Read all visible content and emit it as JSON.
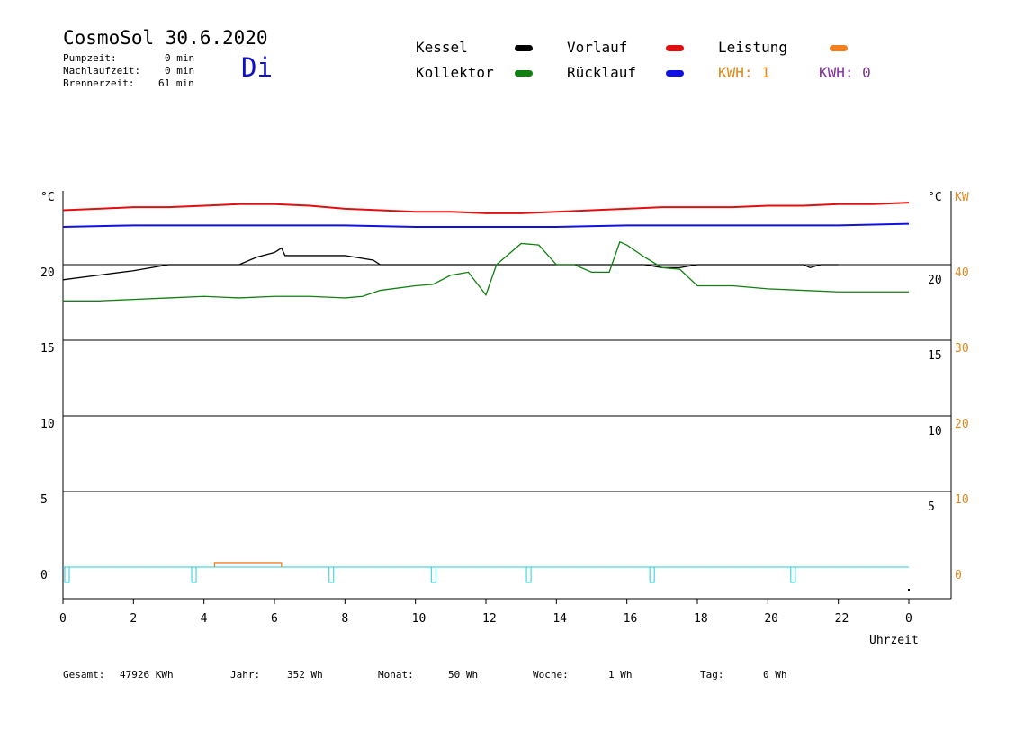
{
  "header": {
    "title": "CosmoSol 30.6.2020",
    "day": "Di",
    "stats": [
      {
        "label": "Pumpzeit:",
        "value": "0 min"
      },
      {
        "label": "Nachlaufzeit:",
        "value": "0 min"
      },
      {
        "label": "Brennerzeit:",
        "value": "61 min"
      }
    ]
  },
  "legend": [
    {
      "label": "Kessel",
      "color": "#000000"
    },
    {
      "label": "Vorlauf",
      "color": "#e01010"
    },
    {
      "label": "Leistung",
      "color": "#f08020"
    },
    {
      "label": "Kollektor",
      "color": "#108010"
    },
    {
      "label": "Rücklauf",
      "color": "#1010e0"
    }
  ],
  "kwh": [
    {
      "label": "KWH: 1",
      "color": "#e08a20"
    },
    {
      "label": "KWH: 0",
      "color": "#8030a0"
    }
  ],
  "footer": {
    "gesamt_label": "Gesamt:",
    "gesamt_value": "47926 KWh",
    "jahr_label": "Jahr:",
    "jahr_value": "352 Wh",
    "monat_label": "Monat:",
    "monat_value": "50 Wh",
    "woche_label": "Woche:",
    "woche_value": "1 Wh",
    "tag_label": "Tag:",
    "tag_value": "0 Wh"
  },
  "chart_data": {
    "type": "line",
    "xlabel": "Uhrzeit",
    "ylabel_left": "°C",
    "ylabel_right_inner": "°C",
    "ylabel_right": "KW",
    "x_ticks": [
      "0",
      "2",
      "4",
      "6",
      "8",
      "10",
      "12",
      "14",
      "16",
      "18",
      "20",
      "22",
      "0"
    ],
    "y_ticks_left": [
      "20",
      "15",
      "10",
      "5",
      "0"
    ],
    "y_ticks_right_inner": [
      "20",
      "15",
      "10",
      "5"
    ],
    "y_ticks_right": [
      "40",
      "30",
      "20",
      "10",
      "0"
    ],
    "xlim": [
      0,
      24
    ],
    "ylim": [
      0,
      25
    ],
    "grid": true,
    "series": [
      {
        "name": "Vorlauf",
        "color": "#e01010",
        "x": [
          0,
          1,
          2,
          3,
          4,
          5,
          6,
          7,
          8,
          9,
          10,
          11,
          12,
          13,
          14,
          15,
          16,
          17,
          18,
          19,
          20,
          21,
          22,
          23,
          24
        ],
        "y": [
          23.6,
          23.7,
          23.8,
          23.8,
          23.9,
          24.0,
          24.0,
          23.9,
          23.7,
          23.6,
          23.5,
          23.5,
          23.4,
          23.4,
          23.5,
          23.6,
          23.7,
          23.8,
          23.8,
          23.8,
          23.9,
          23.9,
          24.0,
          24.0,
          24.1
        ]
      },
      {
        "name": "Rücklauf",
        "color": "#1010e0",
        "x": [
          0,
          2,
          4,
          6,
          8,
          10,
          12,
          14,
          16,
          18,
          20,
          22,
          24
        ],
        "y": [
          22.5,
          22.6,
          22.6,
          22.6,
          22.6,
          22.5,
          22.5,
          22.5,
          22.6,
          22.6,
          22.6,
          22.6,
          22.7
        ]
      },
      {
        "name": "Kessel",
        "color": "#000000",
        "x": [
          0,
          1,
          2,
          3,
          3.2,
          5,
          5.5,
          6,
          6.2,
          6.3,
          7,
          8,
          8.8,
          9,
          10,
          11,
          12,
          13,
          14,
          15,
          16,
          16.5,
          17,
          17.5,
          18,
          19,
          20,
          21,
          21.2,
          21.5,
          22
        ],
        "y": [
          19.0,
          19.3,
          19.6,
          20.0,
          20.0,
          20.0,
          20.5,
          20.8,
          21.1,
          20.6,
          20.6,
          20.6,
          20.3,
          20.0,
          20.0,
          20.0,
          20.0,
          20.0,
          20.0,
          20.0,
          20.0,
          20.0,
          19.8,
          19.8,
          20.0,
          20.0,
          20.0,
          20.0,
          19.8,
          20.0,
          20.0
        ]
      },
      {
        "name": "Kollektor",
        "color": "#108010",
        "x": [
          0,
          1,
          2,
          3,
          4,
          5,
          6,
          7,
          8,
          8.5,
          9,
          10,
          10.5,
          11,
          11.5,
          12,
          12.3,
          13,
          13.5,
          14,
          14.5,
          15,
          15.5,
          15.8,
          16,
          16.5,
          17,
          17.5,
          18,
          19,
          20,
          21,
          22,
          23,
          24
        ],
        "y": [
          17.6,
          17.6,
          17.7,
          17.8,
          17.9,
          17.8,
          17.9,
          17.9,
          17.8,
          17.9,
          18.3,
          18.6,
          18.7,
          19.3,
          19.5,
          18.0,
          20.0,
          21.4,
          21.3,
          20.0,
          20.0,
          19.5,
          19.5,
          21.5,
          21.3,
          20.5,
          19.8,
          19.7,
          18.6,
          18.6,
          18.4,
          18.3,
          18.2,
          18.2,
          18.2
        ]
      },
      {
        "name": "Leistung",
        "color": "#f08020",
        "x": [
          4.3,
          6.2
        ],
        "y": [
          0.3,
          0.3
        ]
      }
    ],
    "burner_marks_hours": [
      0,
      3.6,
      7.5,
      10.4,
      13.1,
      16.6,
      20.6
    ]
  }
}
